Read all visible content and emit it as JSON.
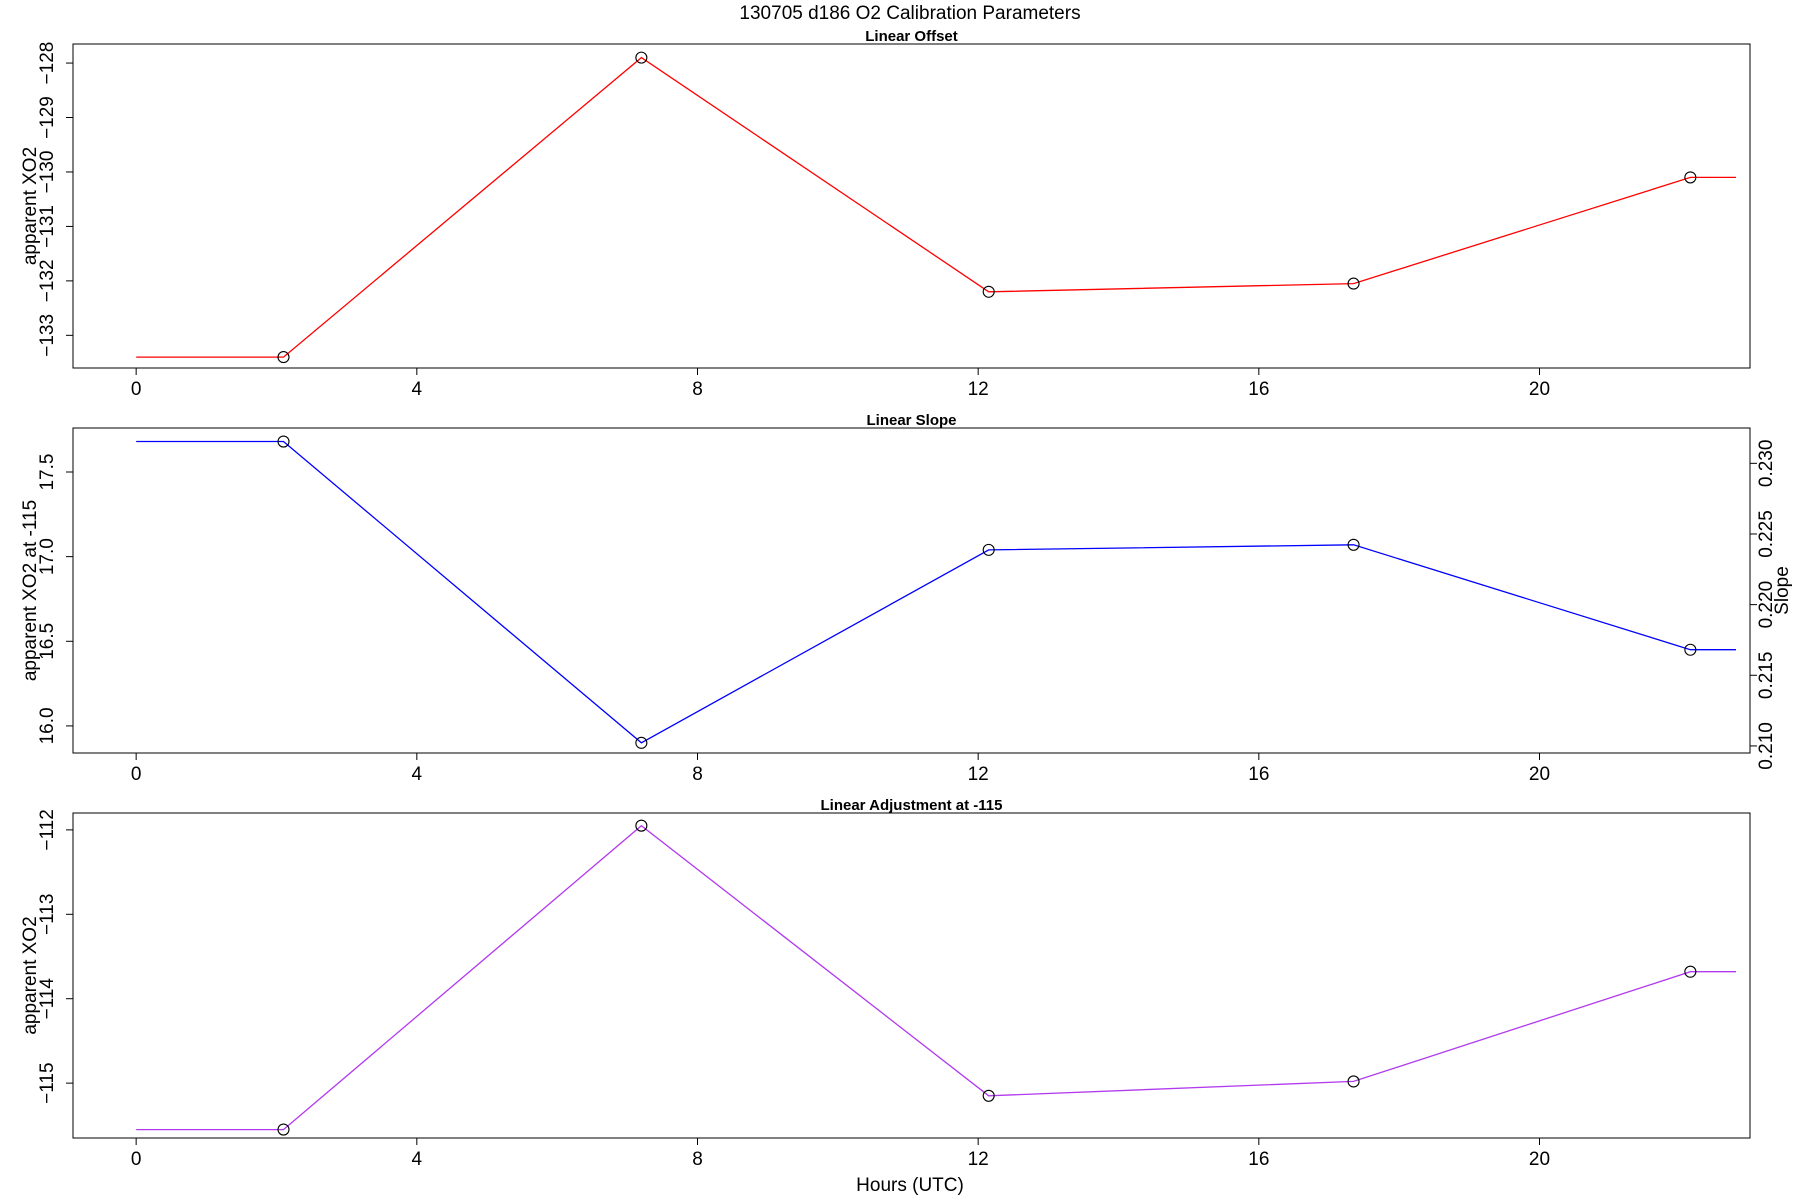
{
  "figure": {
    "title": "130705   d186   O2 Calibration Parameters",
    "xlabel": "Hours (UTC)"
  },
  "chart_data": [
    {
      "type": "line",
      "title": "Linear Offset",
      "xlabel": "",
      "ylabel": "apparent XO2",
      "xlim": [
        -0.9,
        23.0
      ],
      "ylim": [
        -133.6,
        -127.65
      ],
      "x_ticks": [
        0,
        4,
        8,
        12,
        16,
        20
      ],
      "y_ticks": [
        -133,
        -132,
        -131,
        -130,
        -129,
        -128
      ],
      "line_color": "#ff0000",
      "series": [
        {
          "x": [
            0.0,
            2.1,
            7.2,
            12.15,
            17.35,
            22.15,
            22.8
          ],
          "y": [
            -133.4,
            -133.4,
            -127.9,
            -132.2,
            -132.05,
            -130.1,
            -130.1
          ]
        }
      ],
      "markers": {
        "x": [
          2.1,
          7.2,
          12.15,
          17.35,
          22.15
        ],
        "y": [
          -133.4,
          -127.9,
          -132.2,
          -132.05,
          -130.1
        ]
      }
    },
    {
      "type": "line",
      "title": "Linear Slope",
      "xlabel": "",
      "ylabel": "apparent XO2 at -115",
      "ylabel_right": "Slope",
      "xlim": [
        -0.9,
        23.0
      ],
      "ylim": [
        15.84,
        17.76
      ],
      "y_ticks": [
        16.0,
        16.5,
        17.0,
        17.5
      ],
      "y_ticks_right": [
        0.21,
        0.215,
        0.22,
        0.225,
        0.23
      ],
      "y_tick_labels_right": [
        "0.210",
        "0.215",
        "0.220",
        "0.225",
        "0.230"
      ],
      "ylim_right": [
        0.2095,
        0.2325
      ],
      "x_ticks": [
        0,
        4,
        8,
        12,
        16,
        20
      ],
      "line_color": "#0000ff",
      "series": [
        {
          "x": [
            0.0,
            2.1,
            7.2,
            12.15,
            17.35,
            22.15,
            22.8
          ],
          "y": [
            17.68,
            17.68,
            15.9,
            17.04,
            17.07,
            16.45,
            16.45
          ]
        }
      ],
      "markers": {
        "x": [
          2.1,
          7.2,
          12.15,
          17.35,
          22.15
        ],
        "y": [
          17.68,
          15.9,
          17.04,
          17.07,
          16.45
        ]
      }
    },
    {
      "type": "line",
      "title": "Linear Adjustment at -115",
      "xlabel": "Hours (UTC)",
      "ylabel": "apparent XO2",
      "xlim": [
        -0.9,
        23.0
      ],
      "ylim": [
        -115.65,
        -111.8
      ],
      "y_ticks": [
        -115,
        -114,
        -113,
        -112
      ],
      "x_ticks": [
        0,
        4,
        8,
        12,
        16,
        20
      ],
      "line_color": "#b23aee",
      "series": [
        {
          "x": [
            0.0,
            2.1,
            7.2,
            12.15,
            17.35,
            22.15,
            22.8
          ],
          "y": [
            -115.55,
            -115.55,
            -111.95,
            -115.15,
            -114.98,
            -113.68,
            -113.68
          ]
        }
      ],
      "markers": {
        "x": [
          2.1,
          7.2,
          12.15,
          17.35,
          22.15
        ],
        "y": [
          -115.55,
          -111.95,
          -115.15,
          -114.98,
          -113.68
        ]
      }
    }
  ]
}
